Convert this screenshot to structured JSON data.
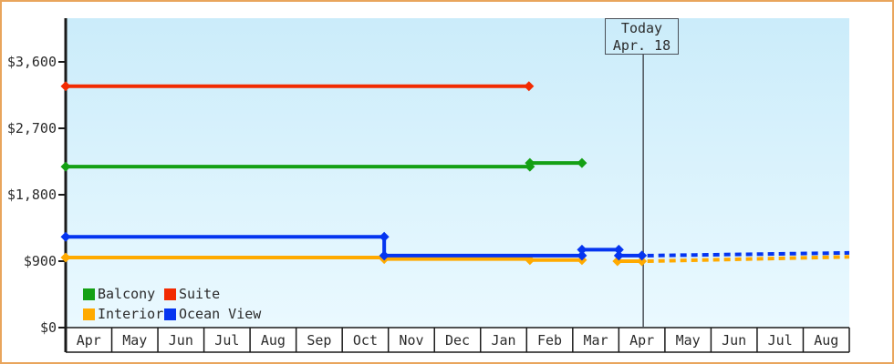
{
  "chart_data": {
    "type": "line",
    "title": "",
    "line_style": "step-hold",
    "forecast_style": "dashed",
    "background": {
      "plot_top": "#cbecfa",
      "plot_bottom": "#eaf9ff",
      "frame": "#e9a55c"
    },
    "x_axis": {
      "months": [
        "Apr",
        "May",
        "Jun",
        "Jul",
        "Aug",
        "Sep",
        "Oct",
        "Nov",
        "Dec",
        "Jan",
        "Feb",
        "Mar",
        "Apr",
        "May",
        "Jun",
        "Jul",
        "Aug"
      ]
    },
    "y_axis": {
      "tick_labels": [
        "$0",
        "$900",
        "$1,800",
        "$2,700",
        "$3,600"
      ],
      "tick_values": [
        0,
        900,
        1800,
        2700,
        3600
      ],
      "ylim": [
        0,
        4200
      ],
      "unit": "USD"
    },
    "today": {
      "label1": "Today",
      "label2": "Apr. 18",
      "month_index": 12.53
    },
    "legend": [
      {
        "label": "Balcony",
        "color": "#14a014"
      },
      {
        "label": "Suite",
        "color": "#f22b02"
      },
      {
        "label": "Interior",
        "color": "#ffaa00"
      },
      {
        "label": "Ocean View",
        "color": "#0535f0"
      }
    ],
    "series": [
      {
        "name": "Suite",
        "color": "#f22b02",
        "segments": [
          [
            {
              "month": 0,
              "value": 3270,
              "marker": true
            },
            {
              "month": 10.05,
              "value": 3270,
              "marker": true
            }
          ]
        ]
      },
      {
        "name": "Balcony",
        "color": "#14a014",
        "segments": [
          [
            {
              "month": 0,
              "value": 2180,
              "marker": true
            },
            {
              "month": 10.07,
              "value": 2180,
              "marker": true
            },
            {
              "month": 10.07,
              "value": 2230,
              "marker": true
            },
            {
              "month": 11.2,
              "value": 2230,
              "marker": true
            }
          ]
        ]
      },
      {
        "name": "Interior",
        "color": "#ffaa00",
        "segments": [
          [
            {
              "month": 0,
              "value": 950,
              "marker": true
            },
            {
              "month": 6.91,
              "value": 950
            },
            {
              "month": 6.91,
              "value": 930,
              "marker": true
            },
            {
              "month": 10.07,
              "value": 930
            },
            {
              "month": 10.07,
              "value": 915,
              "marker": true
            },
            {
              "month": 11.2,
              "value": 915,
              "marker": true
            }
          ],
          [
            {
              "month": 11.97,
              "value": 900,
              "marker": true
            },
            {
              "month": 12.5,
              "value": 900,
              "marker": true
            }
          ]
        ],
        "forecast": [
          {
            "month": 12.62,
            "value": 900
          },
          {
            "month": 17,
            "value": 958
          }
        ]
      },
      {
        "name": "Ocean View",
        "color": "#0535f0",
        "segments": [
          [
            {
              "month": 0,
              "value": 1230,
              "marker": true
            },
            {
              "month": 6.91,
              "value": 1230,
              "marker": true
            },
            {
              "month": 6.91,
              "value": 975,
              "marker": true
            },
            {
              "month": 11.2,
              "value": 975,
              "marker": true
            },
            {
              "month": 11.2,
              "value": 1055,
              "marker": true
            },
            {
              "month": 12.0,
              "value": 1055,
              "marker": true
            },
            {
              "month": 12.0,
              "value": 975,
              "marker": true
            },
            {
              "month": 12.5,
              "value": 975,
              "marker": true
            }
          ]
        ],
        "forecast": [
          {
            "month": 12.62,
            "value": 975
          },
          {
            "month": 17,
            "value": 1012
          }
        ]
      }
    ]
  }
}
